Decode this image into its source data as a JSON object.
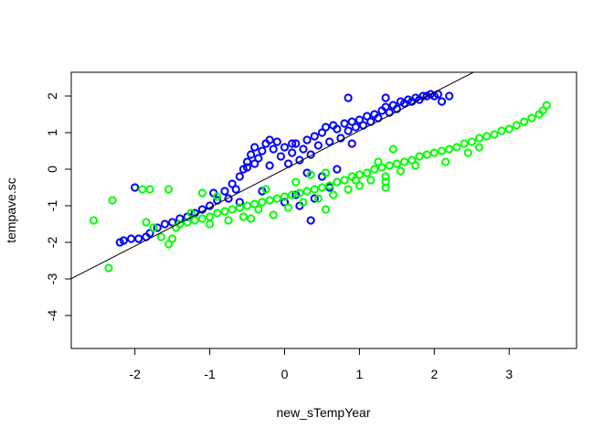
{
  "chart_data": {
    "type": "scatter",
    "title": "",
    "xlabel": "new_sTempYear",
    "ylabel": "tempave.sc",
    "xlim": [
      -2.85,
      3.9
    ],
    "ylim": [
      -4.9,
      2.65
    ],
    "x_ticks": [
      -2,
      -1,
      0,
      1,
      2,
      3
    ],
    "x_tick_labels": [
      "-2",
      "-1",
      "0",
      "1",
      "2",
      "3"
    ],
    "y_ticks": [
      -4,
      -3,
      -2,
      -1,
      0,
      1,
      2
    ],
    "y_tick_labels": [
      "-4",
      "-3",
      "-2",
      "-1",
      "0",
      "1",
      "2"
    ],
    "grid": false,
    "legend": "none",
    "marker": "open-circle",
    "series": [
      {
        "color": "#0000ff",
        "points": [
          [
            -2.2,
            -2.0
          ],
          [
            -2.15,
            -1.95
          ],
          [
            -2.05,
            -1.9
          ],
          [
            -1.95,
            -1.9
          ],
          [
            -1.85,
            -1.85
          ],
          [
            -2.0,
            -0.5
          ],
          [
            -1.8,
            -1.75
          ],
          [
            -1.7,
            -1.6
          ],
          [
            -1.6,
            -1.5
          ],
          [
            -1.5,
            -1.45
          ],
          [
            -1.4,
            -1.35
          ],
          [
            -1.3,
            -1.3
          ],
          [
            -1.2,
            -1.2
          ],
          [
            -1.1,
            -1.1
          ],
          [
            -1.0,
            -1.0
          ],
          [
            -0.9,
            -0.85
          ],
          [
            -0.95,
            -0.65
          ],
          [
            -0.8,
            -0.6
          ],
          [
            -0.75,
            -0.8
          ],
          [
            -0.7,
            -0.4
          ],
          [
            -0.65,
            -0.55
          ],
          [
            -0.6,
            -0.2
          ],
          [
            -0.55,
            0.0
          ],
          [
            -0.5,
            0.2
          ],
          [
            -0.45,
            0.4
          ],
          [
            -0.4,
            0.6
          ],
          [
            -0.35,
            0.3
          ],
          [
            -0.3,
            0.5
          ],
          [
            -0.25,
            0.7
          ],
          [
            -0.2,
            0.1
          ],
          [
            -0.15,
            0.55
          ],
          [
            -0.1,
            0.75
          ],
          [
            -0.05,
            0.35
          ],
          [
            0.0,
            0.6
          ],
          [
            0.05,
            0.15
          ],
          [
            0.1,
            0.45
          ],
          [
            0.15,
            0.7
          ],
          [
            0.2,
            0.25
          ],
          [
            0.25,
            0.55
          ],
          [
            0.3,
            0.8
          ],
          [
            0.35,
            0.4
          ],
          [
            0.4,
            0.9
          ],
          [
            0.45,
            0.65
          ],
          [
            0.5,
            1.0
          ],
          [
            0.55,
            1.15
          ],
          [
            0.6,
            0.75
          ],
          [
            0.65,
            1.2
          ],
          [
            0.7,
            1.1
          ],
          [
            0.75,
            0.85
          ],
          [
            0.8,
            1.25
          ],
          [
            0.85,
            1.05
          ],
          [
            0.9,
            1.3
          ],
          [
            0.95,
            1.15
          ],
          [
            1.0,
            1.35
          ],
          [
            1.05,
            1.2
          ],
          [
            1.1,
            1.45
          ],
          [
            1.15,
            1.3
          ],
          [
            1.2,
            1.5
          ],
          [
            1.25,
            1.4
          ],
          [
            1.3,
            1.6
          ],
          [
            1.35,
            1.7
          ],
          [
            1.4,
            1.55
          ],
          [
            1.45,
            1.75
          ],
          [
            1.5,
            1.65
          ],
          [
            1.55,
            1.85
          ],
          [
            1.6,
            1.8
          ],
          [
            1.65,
            1.9
          ],
          [
            1.7,
            1.85
          ],
          [
            1.75,
            1.95
          ],
          [
            1.8,
            1.9
          ],
          [
            1.85,
            2.0
          ],
          [
            1.9,
            2.0
          ],
          [
            1.95,
            2.05
          ],
          [
            2.0,
            2.0
          ],
          [
            2.05,
            2.05
          ],
          [
            2.1,
            1.85
          ],
          [
            2.2,
            2.0
          ],
          [
            0.85,
            1.95
          ],
          [
            1.35,
            1.95
          ],
          [
            0.3,
            -0.1
          ],
          [
            0.2,
            -1.0
          ],
          [
            0.35,
            -1.4
          ],
          [
            0.5,
            -0.2
          ],
          [
            0.6,
            -0.5
          ],
          [
            -0.3,
            -0.6
          ],
          [
            0.0,
            -0.9
          ],
          [
            0.15,
            -0.7
          ],
          [
            0.4,
            -0.8
          ],
          [
            0.7,
            0.0
          ],
          [
            0.9,
            0.7
          ],
          [
            -0.6,
            -0.9
          ],
          [
            -0.5,
            0.05
          ],
          [
            -0.2,
            0.8
          ],
          [
            0.1,
            0.7
          ],
          [
            -0.4,
            0.15
          ]
        ]
      },
      {
        "color": "#00ff00",
        "points": [
          [
            -2.55,
            -1.4
          ],
          [
            -2.35,
            -2.7
          ],
          [
            -2.3,
            -0.85
          ],
          [
            -1.9,
            -0.55
          ],
          [
            -1.8,
            -0.55
          ],
          [
            -1.55,
            -0.55
          ],
          [
            -1.85,
            -1.45
          ],
          [
            -1.75,
            -1.6
          ],
          [
            -1.65,
            -1.85
          ],
          [
            -1.55,
            -2.05
          ],
          [
            -1.5,
            -1.9
          ],
          [
            -1.45,
            -1.6
          ],
          [
            -1.4,
            -1.5
          ],
          [
            -1.3,
            -1.45
          ],
          [
            -1.2,
            -1.4
          ],
          [
            -1.1,
            -1.35
          ],
          [
            -1.0,
            -1.3
          ],
          [
            -0.9,
            -1.2
          ],
          [
            -0.8,
            -1.15
          ],
          [
            -0.7,
            -1.1
          ],
          [
            -0.6,
            -1.05
          ],
          [
            -0.5,
            -1.0
          ],
          [
            -0.4,
            -0.95
          ],
          [
            -0.3,
            -0.9
          ],
          [
            -0.2,
            -0.85
          ],
          [
            -0.1,
            -0.8
          ],
          [
            0.0,
            -0.75
          ],
          [
            0.1,
            -0.7
          ],
          [
            0.2,
            -0.65
          ],
          [
            0.3,
            -0.6
          ],
          [
            0.4,
            -0.55
          ],
          [
            0.5,
            -0.5
          ],
          [
            0.6,
            -0.45
          ],
          [
            0.7,
            -0.35
          ],
          [
            0.8,
            -0.3
          ],
          [
            0.9,
            -0.2
          ],
          [
            1.0,
            -0.15
          ],
          [
            1.1,
            -0.1
          ],
          [
            1.2,
            0.0
          ],
          [
            1.3,
            0.05
          ],
          [
            1.4,
            0.1
          ],
          [
            1.5,
            0.15
          ],
          [
            1.6,
            0.2
          ],
          [
            1.7,
            0.25
          ],
          [
            1.8,
            0.35
          ],
          [
            1.9,
            0.4
          ],
          [
            2.0,
            0.45
          ],
          [
            2.1,
            0.5
          ],
          [
            2.2,
            0.55
          ],
          [
            2.3,
            0.6
          ],
          [
            2.4,
            0.7
          ],
          [
            2.5,
            0.75
          ],
          [
            2.6,
            0.85
          ],
          [
            2.7,
            0.9
          ],
          [
            2.8,
            0.95
          ],
          [
            2.9,
            1.05
          ],
          [
            3.0,
            1.1
          ],
          [
            3.1,
            1.2
          ],
          [
            3.2,
            1.3
          ],
          [
            3.3,
            1.4
          ],
          [
            3.4,
            1.5
          ],
          [
            3.45,
            1.6
          ],
          [
            3.5,
            1.75
          ],
          [
            -1.1,
            -0.65
          ],
          [
            -0.9,
            -0.75
          ],
          [
            -1.0,
            -1.5
          ],
          [
            -0.75,
            -1.4
          ],
          [
            -0.55,
            -1.3
          ],
          [
            -0.35,
            -1.1
          ],
          [
            -0.15,
            -1.25
          ],
          [
            0.05,
            -1.05
          ],
          [
            0.25,
            -0.9
          ],
          [
            0.45,
            -0.8
          ],
          [
            0.65,
            -0.7
          ],
          [
            0.85,
            -0.55
          ],
          [
            1.0,
            -0.45
          ],
          [
            1.15,
            -0.3
          ],
          [
            1.35,
            -0.2
          ],
          [
            1.55,
            -0.05
          ],
          [
            1.75,
            0.1
          ],
          [
            0.35,
            -0.15
          ],
          [
            0.55,
            -0.1
          ],
          [
            0.15,
            -0.35
          ],
          [
            -0.25,
            -0.55
          ],
          [
            1.35,
            -0.35
          ],
          [
            1.35,
            -0.5
          ],
          [
            2.15,
            0.2
          ],
          [
            2.45,
            0.45
          ],
          [
            2.6,
            0.6
          ],
          [
            1.45,
            0.55
          ],
          [
            0.55,
            -1.1
          ],
          [
            -0.45,
            -1.35
          ],
          [
            -1.25,
            -1.2
          ],
          [
            0.95,
            -0.3
          ],
          [
            1.25,
            0.2
          ]
        ]
      }
    ],
    "fit_line": {
      "slope": 1.05,
      "intercept": 0.0,
      "color": "#000000"
    }
  }
}
